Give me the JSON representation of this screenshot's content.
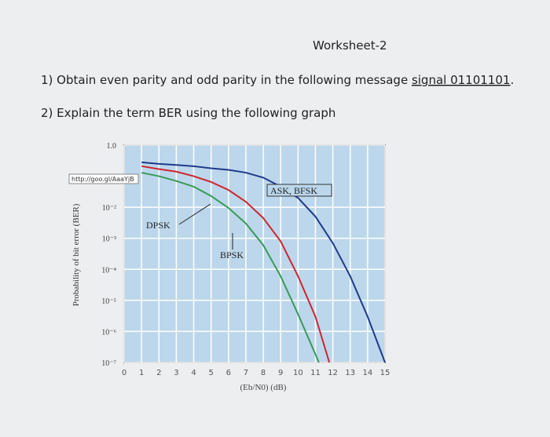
{
  "header": {
    "title": "Worksheet-2"
  },
  "questions": [
    {
      "text": "1) Obtain even parity and odd parity in the following message ",
      "underlined": "signal 01101101",
      "end": "."
    },
    {
      "text": "2) Explain the term BER using the following graph"
    }
  ],
  "chart_data": {
    "type": "line",
    "watermark": "http://goo.gl/AaaYjB",
    "xlabel": "(Eb/N0) (dB)",
    "ylabel": "Probability of bit error (BER)",
    "xlim": [
      0,
      15
    ],
    "xticks": [
      0,
      1,
      2,
      3,
      4,
      5,
      6,
      7,
      8,
      9,
      10,
      11,
      12,
      13,
      14,
      15
    ],
    "ylim": [
      1e-07,
      1
    ],
    "log_y": true,
    "grid": true,
    "yticks": [
      {
        "value": 1,
        "label": "1.0"
      },
      {
        "value": 0.01,
        "label": "10⁻²"
      },
      {
        "value": 0.001,
        "label": "10⁻³"
      },
      {
        "value": 0.0001,
        "label": "10⁻⁴"
      },
      {
        "value": 1e-05,
        "label": "10⁻⁵"
      },
      {
        "value": 1e-06,
        "label": "10⁻⁶"
      },
      {
        "value": 1e-07,
        "label": "10⁻⁷"
      }
    ],
    "series": [
      {
        "name": "ASK, BFSK",
        "color": "#1f3a8a",
        "x": [
          1,
          2,
          3,
          4,
          5,
          6,
          7,
          8,
          9,
          10,
          11,
          12,
          13,
          14,
          15
        ],
        "values": [
          0.28,
          0.25,
          0.23,
          0.21,
          0.18,
          0.16,
          0.13,
          0.09,
          0.046,
          0.02,
          0.005,
          0.0007,
          6e-05,
          3e-06,
          1e-07
        ]
      },
      {
        "name": "DPSK",
        "color": "#d0252c",
        "x": [
          1,
          2,
          3,
          4,
          5,
          6,
          7,
          8,
          9,
          10,
          11,
          11.8
        ],
        "values": [
          0.21,
          0.17,
          0.14,
          0.1,
          0.065,
          0.036,
          0.015,
          0.0045,
          0.0008,
          6e-05,
          3e-06,
          1e-07
        ]
      },
      {
        "name": "BPSK",
        "color": "#3a9a55",
        "x": [
          1,
          2,
          3,
          4,
          5,
          6,
          7,
          8,
          9,
          10,
          11.2
        ],
        "values": [
          0.13,
          0.1,
          0.07,
          0.046,
          0.023,
          0.0095,
          0.003,
          0.0006,
          6e-05,
          3.6e-06,
          1e-07
        ]
      }
    ]
  }
}
